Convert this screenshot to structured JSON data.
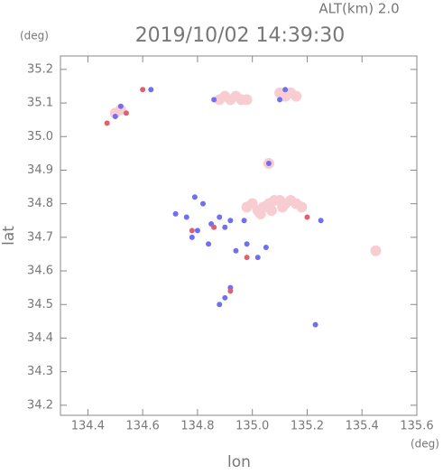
{
  "chart_data": {
    "type": "scatter",
    "title": "2019/10/02 14:39:30",
    "subtitle": "ALT(km) 2.0",
    "x_label": "lon",
    "y_label": "lat",
    "x_unit": "(deg)",
    "y_unit": "(deg)",
    "xlim": [
      134.3,
      135.6
    ],
    "ylim": [
      34.17,
      35.24
    ],
    "xticks": [
      134.4,
      134.6,
      134.8,
      {
        "value": 135,
        "label": "135.0"
      },
      135.2,
      135.4,
      135.6
    ],
    "yticks": [
      34.2,
      34.3,
      34.4,
      34.5,
      34.6,
      34.7,
      34.8,
      34.9,
      {
        "value": 35,
        "label": "35.0"
      },
      35.1,
      35.2
    ],
    "series": [
      {
        "color": "#f7cdd2",
        "x": [
          134.98,
          135.0,
          135.02,
          135.04,
          135.06,
          135.08,
          135.1,
          135.12,
          135.14,
          135.16,
          135.18,
          135.03,
          135.07,
          135.11,
          134.88,
          134.9,
          134.92,
          134.94,
          134.96,
          134.98,
          135.1,
          135.12,
          135.14,
          135.16,
          135.45,
          135.06,
          134.52,
          134.5
        ],
        "y": [
          34.79,
          34.8,
          34.78,
          34.79,
          34.8,
          34.81,
          34.81,
          34.8,
          34.81,
          34.8,
          34.79,
          34.77,
          34.78,
          34.79,
          35.11,
          35.12,
          35.11,
          35.12,
          35.11,
          35.11,
          35.13,
          35.12,
          35.13,
          35.12,
          34.66,
          34.92,
          35.08,
          35.07
        ]
      },
      {
        "color": "#6f6ff0",
        "x": [
          134.52,
          134.5,
          134.63,
          134.72,
          134.76,
          134.79,
          134.82,
          134.85,
          134.88,
          134.9,
          134.92,
          134.78,
          134.8,
          134.84,
          134.94,
          134.98,
          135.02,
          135.05,
          134.9,
          134.88,
          134.92,
          135.23,
          135.06,
          135.12,
          135.1,
          134.86,
          134.97,
          135.25
        ],
        "y": [
          35.09,
          35.06,
          35.14,
          34.77,
          34.76,
          34.82,
          34.8,
          34.74,
          34.76,
          34.73,
          34.75,
          34.7,
          34.72,
          34.68,
          34.66,
          34.68,
          34.64,
          34.67,
          34.52,
          34.5,
          34.55,
          34.44,
          34.92,
          35.14,
          35.11,
          35.11,
          34.75,
          34.75
        ]
      },
      {
        "color": "#e2606e",
        "x": [
          134.47,
          134.54,
          134.78,
          134.86,
          134.98,
          135.2,
          134.92,
          134.6
        ],
        "y": [
          35.04,
          35.07,
          34.72,
          34.73,
          34.64,
          34.76,
          34.54,
          35.14
        ]
      }
    ]
  }
}
